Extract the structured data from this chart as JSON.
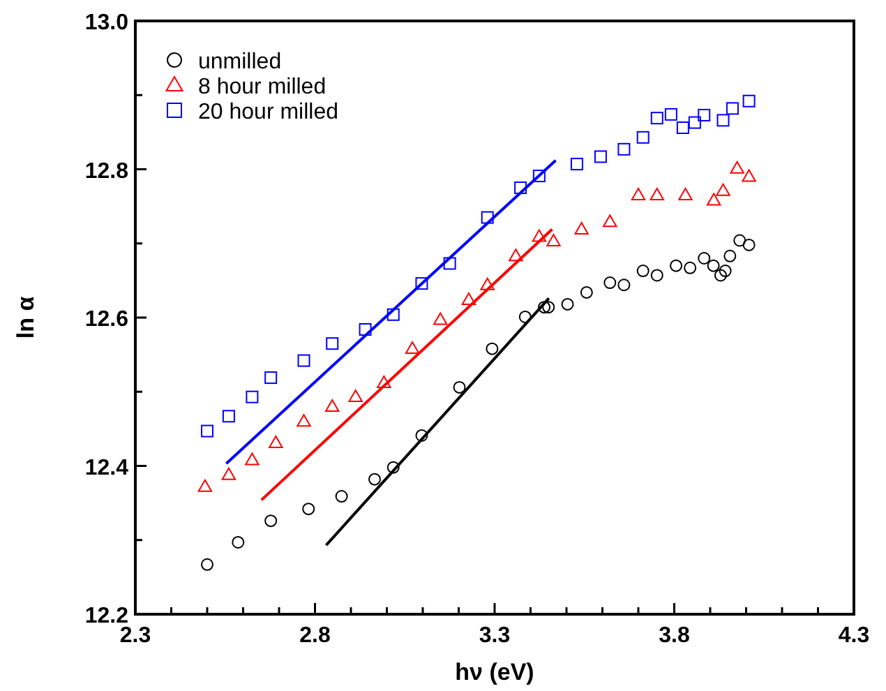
{
  "chart_data": {
    "type": "scatter",
    "xlabel": "hν (eV)",
    "ylabel": "ln α",
    "xlim": [
      2.3,
      4.3
    ],
    "ylim": [
      12.2,
      13.0
    ],
    "xticks": [
      2.3,
      {
        "value": 2.4,
        "label": null
      },
      {
        "value": 2.5,
        "label": null
      },
      {
        "value": 2.6,
        "label": null
      },
      {
        "value": 2.7,
        "label": null
      },
      2.8,
      {
        "value": 2.9,
        "label": null
      },
      {
        "value": 3.0,
        "label": null
      },
      {
        "value": 3.1,
        "label": null
      },
      {
        "value": 3.2,
        "label": null
      },
      3.3,
      {
        "value": 3.4,
        "label": null
      },
      {
        "value": 3.5,
        "label": null
      },
      {
        "value": 3.6,
        "label": null
      },
      {
        "value": 3.7,
        "label": null
      },
      3.8,
      {
        "value": 3.9,
        "label": null
      },
      {
        "value": 4.0,
        "label": null
      },
      {
        "value": 4.1,
        "label": null
      },
      {
        "value": 4.2,
        "label": null
      },
      4.3
    ],
    "yticks": [
      12.2,
      {
        "value": 12.3,
        "label": null
      },
      12.4,
      {
        "value": 12.5,
        "label": null
      },
      12.6,
      {
        "value": 12.7,
        "label": null
      },
      12.8,
      {
        "value": 12.9,
        "label": null
      },
      {
        "value": 13.0,
        "label": "13.0"
      }
    ],
    "grid": false,
    "legend": "top left",
    "series": [
      {
        "name": "unmilled",
        "marker": "circle",
        "color": "#000000",
        "x": [
          2.5,
          2.586,
          2.677,
          2.782,
          2.874,
          2.966,
          3.018,
          3.097,
          3.202,
          3.293,
          3.385,
          3.438,
          3.45,
          3.503,
          3.556,
          3.621,
          3.66,
          3.713,
          3.752,
          3.805,
          3.844,
          3.883,
          3.909,
          3.929,
          3.942,
          3.955,
          3.982,
          4.008
        ],
        "values": [
          12.267,
          12.297,
          12.326,
          12.342,
          12.359,
          12.382,
          12.398,
          12.441,
          12.506,
          12.558,
          12.601,
          12.614,
          12.614,
          12.618,
          12.634,
          12.647,
          12.644,
          12.663,
          12.657,
          12.67,
          12.667,
          12.68,
          12.67,
          12.657,
          12.663,
          12.683,
          12.704,
          12.698
        ]
      },
      {
        "name": "8 hour milled",
        "marker": "triangle",
        "color": "#ff0000",
        "x": [
          2.494,
          2.56,
          2.625,
          2.691,
          2.769,
          2.848,
          2.913,
          2.992,
          3.071,
          3.149,
          3.228,
          3.28,
          3.359,
          3.424,
          3.464,
          3.542,
          3.621,
          3.7,
          3.752,
          3.831,
          3.91,
          3.936,
          3.975,
          4.008
        ],
        "values": [
          12.372,
          12.388,
          12.408,
          12.431,
          12.46,
          12.48,
          12.493,
          12.512,
          12.558,
          12.597,
          12.624,
          12.644,
          12.683,
          12.709,
          12.703,
          12.719,
          12.729,
          12.765,
          12.765,
          12.765,
          12.758,
          12.771,
          12.801,
          12.79
        ]
      },
      {
        "name": "20 hour milled",
        "marker": "square",
        "color": "#0000ff",
        "x": [
          2.5,
          2.56,
          2.625,
          2.677,
          2.769,
          2.848,
          2.94,
          3.018,
          3.097,
          3.175,
          3.28,
          3.372,
          3.424,
          3.529,
          3.595,
          3.66,
          3.713,
          3.752,
          3.791,
          3.824,
          3.857,
          3.883,
          3.936,
          3.962,
          4.008
        ],
        "values": [
          12.447,
          12.467,
          12.493,
          12.519,
          12.542,
          12.565,
          12.584,
          12.604,
          12.646,
          12.673,
          12.735,
          12.775,
          12.791,
          12.807,
          12.817,
          12.827,
          12.843,
          12.869,
          12.874,
          12.856,
          12.863,
          12.873,
          12.866,
          12.882,
          12.892
        ]
      },
      {
        "type": "line",
        "marker": "none",
        "color": "#000000",
        "x": [
          2.831,
          3.451
        ],
        "values": [
          12.293,
          12.626
        ]
      },
      {
        "type": "line",
        "marker": "none",
        "color": "#ff0000",
        "x": [
          2.651,
          3.46
        ],
        "values": [
          12.354,
          12.719
        ]
      },
      {
        "type": "line",
        "marker": "none",
        "color": "#0000ff",
        "x": [
          2.553,
          3.47
        ],
        "values": [
          12.403,
          12.812
        ]
      }
    ]
  }
}
